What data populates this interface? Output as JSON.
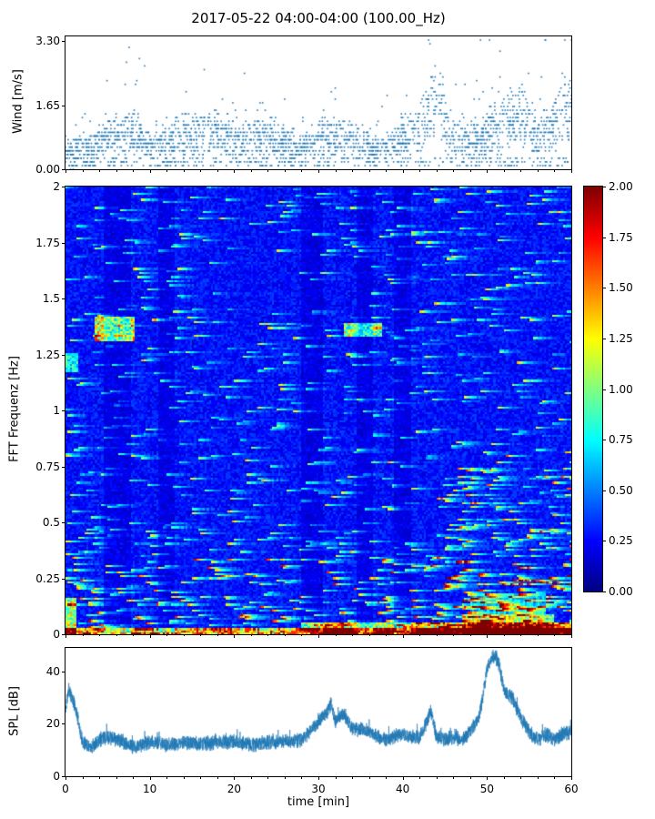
{
  "title": "2017-05-22 04:00-04:00 (100.00_Hz)",
  "colors": {
    "series": "#1f77b4",
    "axis": "#000000",
    "background": "#ffffff"
  },
  "chart_data": [
    {
      "id": "wind",
      "type": "scatter",
      "ylabel": "Wind [m/s]",
      "xlim": [
        0,
        60
      ],
      "ylim": [
        0,
        3.42
      ],
      "ytick_labels": [
        "0.00",
        "1.65",
        "3.30"
      ],
      "ytick_values": [
        0,
        1.65,
        3.3
      ],
      "marker_color": "#1f77b4",
      "n_points": 2600,
      "seed": 42,
      "spread": 0.42,
      "mean_keypoints": [
        [
          0,
          0.5
        ],
        [
          2,
          0.55
        ],
        [
          4,
          0.7
        ],
        [
          6,
          0.95
        ],
        [
          8,
          1.05
        ],
        [
          10,
          0.65
        ],
        [
          12,
          0.75
        ],
        [
          14,
          0.9
        ],
        [
          16,
          1.0
        ],
        [
          18,
          1.05
        ],
        [
          20,
          0.85
        ],
        [
          22,
          0.75
        ],
        [
          24,
          0.95
        ],
        [
          26,
          0.7
        ],
        [
          28,
          0.55
        ],
        [
          30,
          0.8
        ],
        [
          32,
          0.95
        ],
        [
          34,
          0.85
        ],
        [
          36,
          0.6
        ],
        [
          38,
          0.55
        ],
        [
          40,
          0.85
        ],
        [
          42,
          1.1
        ],
        [
          43,
          1.6
        ],
        [
          44,
          2.1
        ],
        [
          45,
          1.3
        ],
        [
          46,
          0.9
        ],
        [
          48,
          0.8
        ],
        [
          50,
          1.0
        ],
        [
          52,
          1.3
        ],
        [
          54,
          1.55
        ],
        [
          56,
          0.95
        ],
        [
          58,
          1.25
        ],
        [
          59,
          1.8
        ],
        [
          60,
          1.6
        ]
      ]
    },
    {
      "id": "spectrogram",
      "type": "heatmap",
      "ylabel": "FFT Frequenz [Hz]",
      "xlim": [
        0,
        60
      ],
      "ylim": [
        0,
        2
      ],
      "ytick_labels": [
        "0",
        "0.25",
        "0.5",
        "0.75",
        "1",
        "1.25",
        "1.5",
        "1.75",
        "2"
      ],
      "ytick_values": [
        0,
        0.25,
        0.5,
        0.75,
        1,
        1.25,
        1.5,
        1.75,
        2
      ],
      "colormap": "jet",
      "clim": [
        0,
        2
      ],
      "colorbar_tick_labels": [
        "0.00",
        "0.25",
        "0.50",
        "0.75",
        "1.00",
        "1.25",
        "1.50",
        "1.75",
        "2.00"
      ],
      "colorbar_tick_values": [
        0,
        0.25,
        0.5,
        0.75,
        1,
        1.25,
        1.5,
        1.75,
        2
      ],
      "grid_bins": {
        "nt": 240,
        "nf": 220
      },
      "base_level": 0.16,
      "noise_level": 0.22,
      "seed": 7,
      "features": [
        {
          "t": [
            3.5,
            8.2
          ],
          "f": [
            1.31,
            1.42
          ],
          "amp": 1.05
        },
        {
          "t": [
            33,
            37.5
          ],
          "f": [
            1.33,
            1.39
          ],
          "amp": 0.85
        },
        {
          "t": [
            0,
            1.6
          ],
          "f": [
            1.17,
            1.25
          ],
          "amp": 0.55
        },
        {
          "t": [
            0,
            1.2
          ],
          "f": [
            0,
            0.16
          ],
          "amp": 0.9
        },
        {
          "t": [
            0,
            60
          ],
          "f": [
            0,
            0.03
          ],
          "amp": 1.25
        },
        {
          "t": [
            28,
            60
          ],
          "f": [
            0,
            0.055
          ],
          "amp": 0.9
        },
        {
          "t": [
            29,
            33
          ],
          "f": [
            0,
            0.05
          ],
          "amp": 0.5
        },
        {
          "t": [
            47,
            58
          ],
          "f": [
            0,
            0.09
          ],
          "amp": 0.8
        },
        {
          "t": [
            48,
            57
          ],
          "f": [
            0.09,
            0.18
          ],
          "amp": 0.35
        }
      ],
      "dark_columns": [
        [
          4.5,
          7.8
        ],
        [
          11,
          13
        ],
        [
          28,
          30.5
        ],
        [
          34.5,
          36.5
        ],
        [
          39,
          41
        ]
      ]
    },
    {
      "id": "spl",
      "type": "line",
      "xlabel": "time [min]",
      "ylabel": "SPL [dB]",
      "xlim": [
        0,
        60
      ],
      "ylim": [
        0,
        49
      ],
      "xtick_labels": [
        "0",
        "10",
        "20",
        "30",
        "40",
        "50",
        "60"
      ],
      "xtick_values": [
        0,
        10,
        20,
        30,
        40,
        50,
        60
      ],
      "ytick_labels": [
        "0",
        "20",
        "40"
      ],
      "ytick_values": [
        0,
        20,
        40
      ],
      "line_color": "#1f77b4",
      "n_points": 4200,
      "seed": 11,
      "noise": 3.2,
      "envelope_keypoints": [
        [
          0,
          26
        ],
        [
          0.4,
          33
        ],
        [
          0.8,
          30
        ],
        [
          1.5,
          22
        ],
        [
          2,
          13
        ],
        [
          3,
          11
        ],
        [
          4,
          14
        ],
        [
          5,
          15
        ],
        [
          6,
          14
        ],
        [
          7,
          13
        ],
        [
          8,
          11
        ],
        [
          9,
          12
        ],
        [
          10,
          13
        ],
        [
          12,
          12
        ],
        [
          14,
          13
        ],
        [
          16,
          12
        ],
        [
          18,
          13
        ],
        [
          20,
          13
        ],
        [
          22,
          12
        ],
        [
          24,
          13
        ],
        [
          26,
          13
        ],
        [
          28,
          14
        ],
        [
          29,
          17
        ],
        [
          30,
          21
        ],
        [
          31,
          24
        ],
        [
          31.5,
          28
        ],
        [
          32,
          21
        ],
        [
          33,
          24
        ],
        [
          34,
          18
        ],
        [
          35,
          18
        ],
        [
          36,
          17
        ],
        [
          37,
          15
        ],
        [
          38,
          14
        ],
        [
          39,
          15
        ],
        [
          40,
          16
        ],
        [
          41,
          15
        ],
        [
          42,
          15
        ],
        [
          43,
          22
        ],
        [
          43.3,
          26
        ],
        [
          44,
          15
        ],
        [
          45,
          14
        ],
        [
          46,
          15
        ],
        [
          47,
          14
        ],
        [
          48,
          17
        ],
        [
          49,
          22
        ],
        [
          49.5,
          30
        ],
        [
          50,
          41
        ],
        [
          50.5,
          45
        ],
        [
          51,
          46
        ],
        [
          51.5,
          42
        ],
        [
          52,
          33
        ],
        [
          52.5,
          31
        ],
        [
          53,
          30
        ],
        [
          53.5,
          26
        ],
        [
          54,
          22
        ],
        [
          55,
          17
        ],
        [
          56,
          14
        ],
        [
          57,
          16
        ],
        [
          58,
          14
        ],
        [
          59,
          16
        ],
        [
          60,
          17
        ]
      ]
    }
  ]
}
